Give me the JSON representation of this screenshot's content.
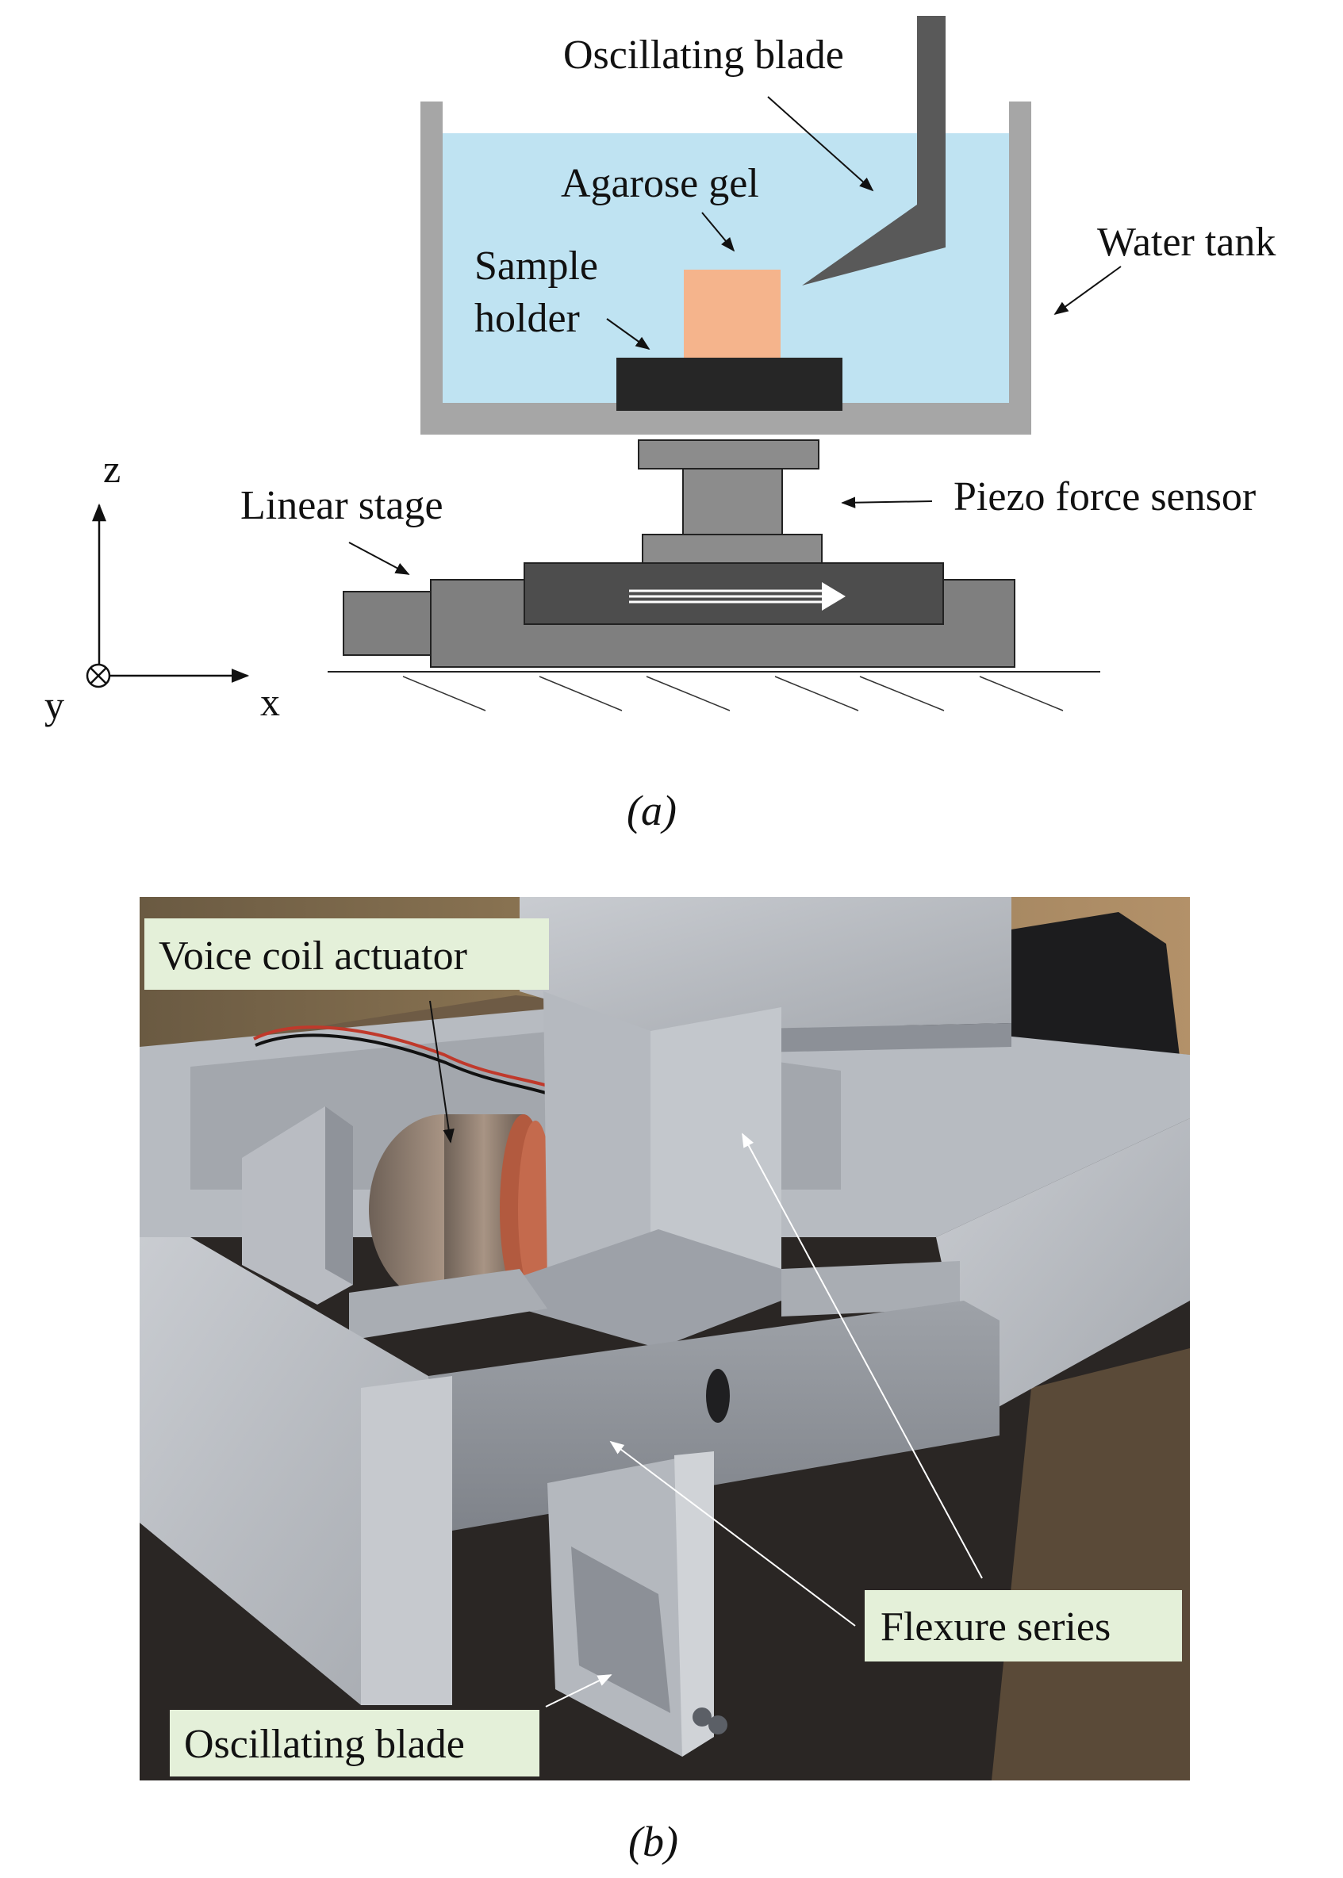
{
  "figure_a": {
    "labels": {
      "oscillating_blade": "Oscillating blade",
      "agarose_gel": "Agarose gel",
      "sample_holder_line1": "Sample",
      "sample_holder_line2": "holder",
      "water_tank": "Water tank",
      "linear_stage": "Linear stage",
      "piezo_force_sensor": "Piezo force sensor"
    },
    "axes": {
      "z": "z",
      "x": "x",
      "y": "y"
    },
    "caption": "(a)",
    "colors": {
      "water": "#bfe3f2",
      "tank_wall": "#a6a6a6",
      "gel": "#f5b48c",
      "holder": "#262626",
      "blade": "#595959",
      "stage_light": "#7f7f7f",
      "stage_dark": "#4d4d4d"
    }
  },
  "figure_b": {
    "labels": {
      "voice_coil_actuator": "Voice coil actuator",
      "flexure_series": "Flexure series",
      "oscillating_blade": "Oscillating blade"
    },
    "label_background": "#e4f0d9",
    "caption": "(b)"
  }
}
